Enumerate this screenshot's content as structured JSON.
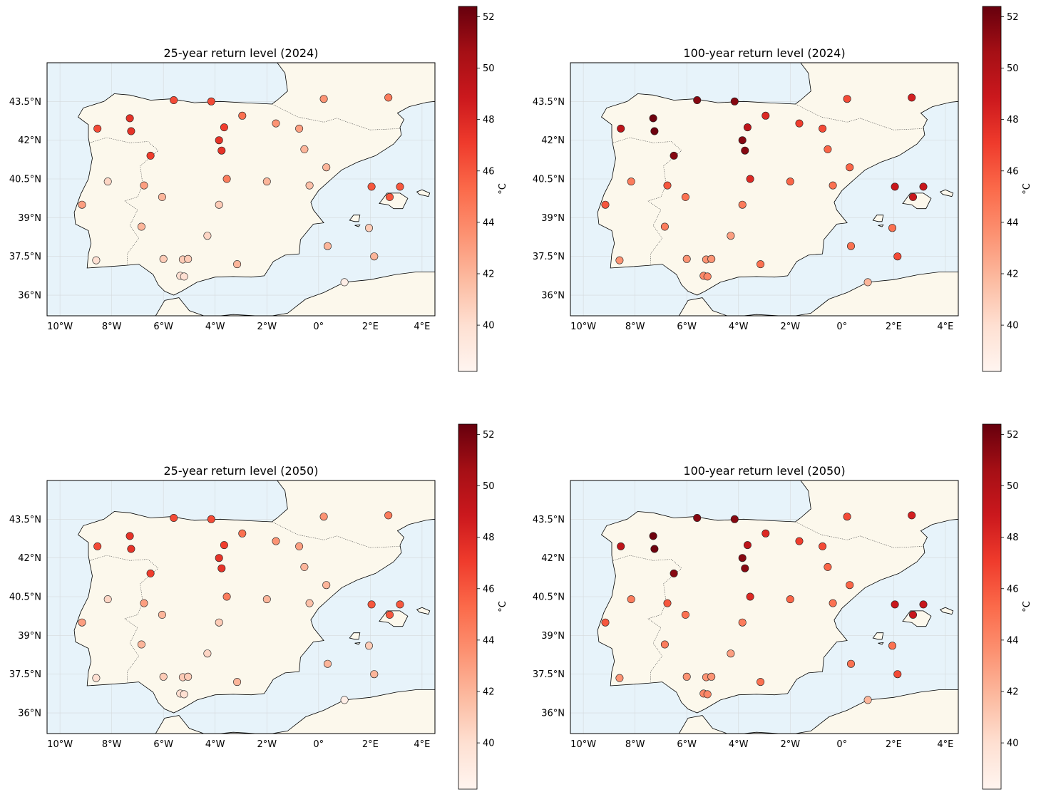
{
  "colorbar": {
    "label": "°C",
    "vmin": 38.2,
    "vmax": 52.4,
    "ticks": [
      "40",
      "42",
      "44",
      "46",
      "48",
      "50",
      "52"
    ],
    "tick_values": [
      40,
      42,
      44,
      46,
      48,
      50,
      52
    ],
    "colormap": [
      "#fff5f0",
      "#fee0d2",
      "#fcbba1",
      "#fc9272",
      "#fb6a4a",
      "#ef3b2c",
      "#cb181d",
      "#a50f15",
      "#67000d"
    ]
  },
  "map": {
    "lon_range": [
      -10.5,
      4.5
    ],
    "lat_range": [
      35.2,
      45.0
    ],
    "lon_ticks": [
      "10°W",
      "8°W",
      "6°W",
      "4°W",
      "2°W",
      "0°",
      "2°E",
      "4°E"
    ],
    "lon_tick_values": [
      -10,
      -8,
      -6,
      -4,
      -2,
      0,
      2,
      4
    ],
    "lat_ticks": [
      "36°N",
      "37.5°N",
      "39°N",
      "40.5°N",
      "42°N",
      "43.5°N"
    ],
    "lat_tick_values": [
      36,
      37.5,
      39,
      40.5,
      42,
      43.5
    ],
    "land_color": "#fcf8ec",
    "sea_color": "#e7f3fa"
  },
  "stations": [
    {
      "lon": -5.6,
      "lat": 43.55
    },
    {
      "lon": -4.15,
      "lat": 43.5
    },
    {
      "lon": 0.2,
      "lat": 43.6
    },
    {
      "lon": 2.7,
      "lat": 43.65
    },
    {
      "lon": -7.3,
      "lat": 42.85
    },
    {
      "lon": -2.95,
      "lat": 42.95
    },
    {
      "lon": -8.55,
      "lat": 42.45
    },
    {
      "lon": -7.25,
      "lat": 42.35
    },
    {
      "lon": -3.65,
      "lat": 42.5
    },
    {
      "lon": -1.65,
      "lat": 42.65
    },
    {
      "lon": -0.75,
      "lat": 42.45
    },
    {
      "lon": -3.85,
      "lat": 42.0
    },
    {
      "lon": -3.75,
      "lat": 41.6
    },
    {
      "lon": -6.5,
      "lat": 41.4
    },
    {
      "lon": -0.55,
      "lat": 41.65
    },
    {
      "lon": 0.3,
      "lat": 40.95
    },
    {
      "lon": -8.15,
      "lat": 40.4
    },
    {
      "lon": -6.75,
      "lat": 40.25
    },
    {
      "lon": -3.55,
      "lat": 40.5
    },
    {
      "lon": -2.0,
      "lat": 40.4
    },
    {
      "lon": -0.35,
      "lat": 40.25
    },
    {
      "lon": 2.05,
      "lat": 40.2
    },
    {
      "lon": 3.15,
      "lat": 40.2
    },
    {
      "lon": 2.75,
      "lat": 39.8
    },
    {
      "lon": -6.05,
      "lat": 39.8
    },
    {
      "lon": -3.85,
      "lat": 39.5
    },
    {
      "lon": -9.15,
      "lat": 39.5
    },
    {
      "lon": -6.85,
      "lat": 38.65
    },
    {
      "lon": 1.95,
      "lat": 38.6
    },
    {
      "lon": -4.3,
      "lat": 38.3
    },
    {
      "lon": 0.35,
      "lat": 37.9
    },
    {
      "lon": 2.15,
      "lat": 37.5
    },
    {
      "lon": -8.6,
      "lat": 37.35
    },
    {
      "lon": -6.0,
      "lat": 37.4
    },
    {
      "lon": -5.25,
      "lat": 37.38
    },
    {
      "lon": -5.05,
      "lat": 37.4
    },
    {
      "lon": -3.15,
      "lat": 37.2
    },
    {
      "lon": -5.35,
      "lat": 36.75
    },
    {
      "lon": -5.2,
      "lat": 36.72
    },
    {
      "lon": 1.0,
      "lat": 36.5
    }
  ],
  "panels": [
    {
      "title": "25-year return level (2024)",
      "values": [
        46.5,
        46.5,
        43.5,
        44.5,
        47.5,
        45.0,
        46.5,
        47.5,
        47.0,
        43.5,
        43.0,
        47.5,
        47.5,
        47.0,
        42.0,
        42.0,
        40.5,
        43.0,
        44.5,
        42.0,
        41.5,
        46.0,
        46.0,
        46.0,
        42.0,
        41.0,
        43.0,
        42.0,
        41.0,
        40.5,
        42.0,
        42.0,
        40.0,
        41.0,
        41.0,
        41.0,
        42.0,
        40.0,
        40.0,
        38.8
      ]
    },
    {
      "title": "100-year return level (2024)",
      "values": [
        51.5,
        51.5,
        46.5,
        48.5,
        52.2,
        48.0,
        49.5,
        52.2,
        49.5,
        47.0,
        46.5,
        51.5,
        51.5,
        51.5,
        45.5,
        45.5,
        44.5,
        46.0,
        48.0,
        45.5,
        45.0,
        49.0,
        49.0,
        49.0,
        45.0,
        44.5,
        46.0,
        44.5,
        45.0,
        43.0,
        45.0,
        46.5,
        43.5,
        43.5,
        43.5,
        43.5,
        45.0,
        44.0,
        44.0,
        42.0
      ]
    },
    {
      "title": "25-year return level (2050)",
      "values": [
        46.5,
        46.5,
        43.5,
        44.5,
        47.5,
        45.0,
        46.5,
        47.5,
        47.0,
        43.5,
        43.0,
        47.5,
        47.5,
        47.0,
        42.0,
        42.0,
        40.5,
        43.0,
        44.5,
        42.0,
        41.5,
        46.0,
        46.0,
        46.0,
        42.0,
        41.0,
        43.0,
        42.0,
        41.0,
        40.5,
        42.0,
        42.0,
        40.0,
        41.0,
        41.0,
        41.0,
        42.0,
        40.0,
        40.0,
        38.8
      ]
    },
    {
      "title": "100-year return level (2050)",
      "values": [
        51.5,
        51.5,
        46.5,
        48.5,
        52.2,
        48.0,
        49.5,
        52.2,
        49.5,
        47.0,
        46.5,
        51.5,
        51.5,
        51.5,
        45.5,
        45.5,
        44.5,
        46.0,
        48.0,
        45.5,
        45.0,
        49.0,
        49.0,
        49.0,
        45.0,
        44.5,
        46.0,
        44.5,
        45.0,
        43.0,
        45.0,
        46.5,
        43.5,
        43.5,
        43.5,
        43.5,
        45.0,
        44.0,
        44.0,
        42.0
      ]
    }
  ]
}
